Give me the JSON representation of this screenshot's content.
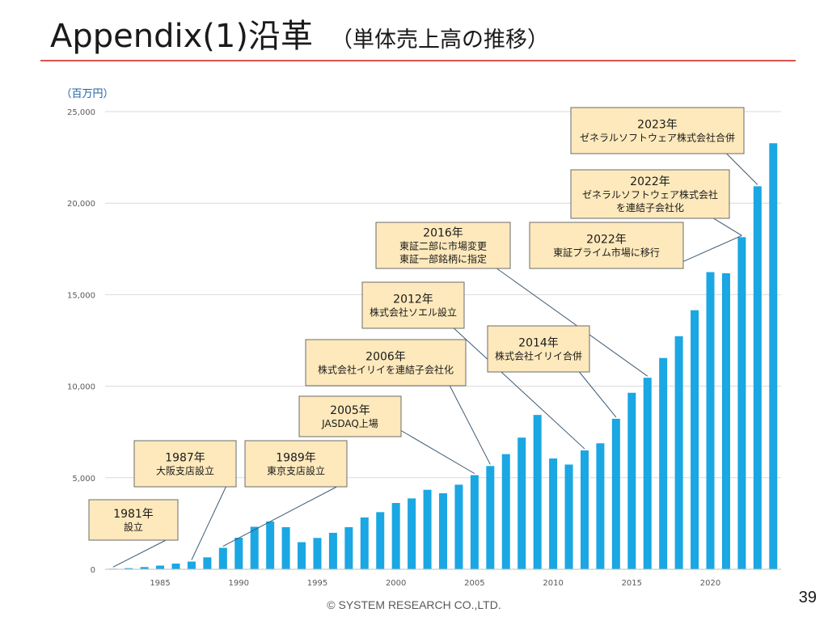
{
  "header": {
    "title": "Appendix(1)沿革",
    "subtitle": "（単体売上高の推移）"
  },
  "footer": {
    "copyright": "© SYSTEM RESEARCH CO.,LTD.",
    "page_number": "39"
  },
  "colors": {
    "bar": "#1aa7e3",
    "callout_fill": "#fde9bc",
    "callout_border": "#6b6b6b",
    "leader_line": "#3d5a73",
    "gridline": "#d9d9d9",
    "title_rule": "#d9534f",
    "unit_text": "#1f5fa8"
  },
  "chart_data": {
    "type": "bar",
    "title": "",
    "xlabel": "",
    "ylabel": "（百万円）",
    "ylim": [
      0,
      25000
    ],
    "yticks": [
      0,
      5000,
      10000,
      15000,
      20000,
      25000
    ],
    "ytick_labels": [
      "0",
      "5,000",
      "10,000",
      "15,000",
      "20,000",
      "25,000"
    ],
    "xtick_labels": [
      {
        "year": 1985,
        "label": "1985"
      },
      {
        "year": 1990,
        "label": "1990"
      },
      {
        "year": 1995,
        "label": "1995"
      },
      {
        "year": 2000,
        "label": "2000"
      },
      {
        "year": 2005,
        "label": "2005"
      },
      {
        "year": 2010,
        "label": "2010"
      },
      {
        "year": 2015,
        "label": "2015"
      },
      {
        "year": 2020,
        "label": "2020"
      }
    ],
    "grid": true,
    "legend": "none",
    "years": [
      1982,
      1983,
      1984,
      1985,
      1986,
      1987,
      1988,
      1989,
      1990,
      1991,
      1992,
      1993,
      1994,
      1995,
      1996,
      1997,
      1998,
      1999,
      2000,
      2001,
      2002,
      2003,
      2004,
      2005,
      2006,
      2007,
      2008,
      2009,
      2010,
      2011,
      2012,
      2013,
      2014,
      2015,
      2016,
      2017,
      2018,
      2019,
      2020,
      2021,
      2022,
      2023,
      2024
    ],
    "values": [
      30,
      60,
      120,
      200,
      310,
      420,
      650,
      1170,
      1720,
      2320,
      2610,
      2300,
      1480,
      1710,
      1990,
      2300,
      2830,
      3120,
      3620,
      3870,
      4340,
      4150,
      4620,
      5140,
      5640,
      6290,
      7190,
      8430,
      6050,
      5720,
      6490,
      6880,
      8220,
      9640,
      10460,
      11540,
      12730,
      14150,
      16230,
      16170,
      18140,
      20920,
      23270
    ],
    "annotations": [
      {
        "year_line1": "1981年",
        "lines": [
          "設立"
        ],
        "target_year": 1982,
        "text_anchor": "right"
      },
      {
        "year_line1": "1987年",
        "lines": [
          "大阪支店設立"
        ],
        "target_year": 1987,
        "text_anchor": "bottom"
      },
      {
        "year_line1": "1989年",
        "lines": [
          "東京支店設立"
        ],
        "target_year": 1989,
        "text_anchor": "bottom"
      },
      {
        "year_line1": "2005年",
        "lines": [
          "JASDAQ上場"
        ],
        "target_year": 2005,
        "text_anchor": "right"
      },
      {
        "year_line1": "2006年",
        "lines": [
          "株式会社イリイを連結子会社化"
        ],
        "target_year": 2006,
        "text_anchor": "bottom"
      },
      {
        "year_line1": "2012年",
        "lines": [
          "株式会社ソエル設立"
        ],
        "target_year": 2012,
        "text_anchor": "bottom"
      },
      {
        "year_line1": "2014年",
        "lines": [
          "株式会社イリイ合併"
        ],
        "target_year": 2014,
        "text_anchor": "bottom"
      },
      {
        "year_line1": "2016年",
        "lines": [
          "東証二部に市場変更",
          "東証一部銘柄に指定"
        ],
        "target_year": 2016,
        "text_anchor": "bottom"
      },
      {
        "year_line1": "2022年",
        "lines": [
          "東証プライム市場に移行"
        ],
        "target_year": 2022,
        "text_anchor": "right"
      },
      {
        "year_line1": "2022年",
        "lines": [
          "ゼネラルソフトウェア株式会社",
          "を連結子会社化"
        ],
        "target_year": 2022,
        "text_anchor": "bottom"
      },
      {
        "year_line1": "2023年",
        "lines": [
          "ゼネラルソフトウェア株式会社合併"
        ],
        "target_year": 2023,
        "text_anchor": "bottom"
      }
    ]
  }
}
